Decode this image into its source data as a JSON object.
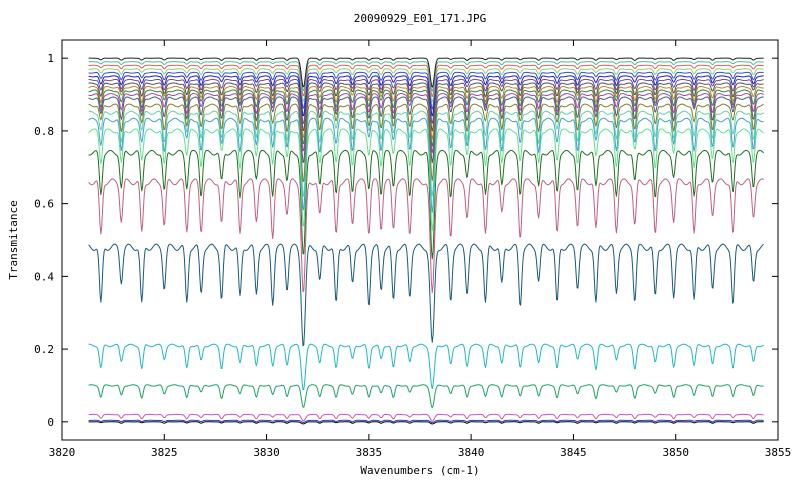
{
  "chart_data": {
    "type": "line",
    "title": "20090929_E01_171.JPG",
    "xlabel": "Wavenumbers (cm-1)",
    "ylabel": "Transmitance",
    "xlim": [
      3820,
      3855
    ],
    "ylim": [
      -0.05,
      1.05
    ],
    "x_range": [
      3821.3,
      3854.3
    ],
    "x_ticks": [
      3820,
      3825,
      3830,
      3835,
      3840,
      3845,
      3850,
      3855
    ],
    "x_tick_labels": [
      "3820",
      "3825",
      "3830",
      "3835",
      "3840",
      "3845",
      "3850",
      "3855"
    ],
    "y_ticks": [
      0,
      0.2,
      0.4,
      0.6,
      0.8,
      1
    ],
    "y_tick_labels": [
      "0",
      "0.2",
      "0.4",
      "0.6",
      "0.8",
      "1"
    ],
    "grid": false,
    "legend": "none",
    "absorption_lines_cm1": [
      3821.9,
      3822.9,
      3823.9,
      3825.0,
      3826.1,
      3826.8,
      3827.8,
      3828.7,
      3829.5,
      3830.3,
      3831.0,
      3831.8,
      3832.6,
      3833.4,
      3834.2,
      3835.0,
      3835.6,
      3836.2,
      3837.0,
      3838.1,
      3839.0,
      3839.8,
      3840.7,
      3841.5,
      3842.4,
      3843.3,
      3844.2,
      3845.2,
      3846.1,
      3847.1,
      3848.0,
      3849.0,
      3849.9,
      3850.9,
      3851.8,
      3852.8,
      3853.8
    ],
    "series": [
      {
        "baseline": 0.0,
        "depth_mid": 0.004,
        "depth_max": 0.006,
        "color": "#000000"
      },
      {
        "baseline": 0.004,
        "depth_mid": 0.004,
        "depth_max": 0.006,
        "color": "#2040c0"
      },
      {
        "baseline": 0.02,
        "depth_mid": 0.012,
        "depth_max": 0.018,
        "color": "#d050d0"
      },
      {
        "baseline": 0.1,
        "depth_mid": 0.035,
        "depth_max": 0.06,
        "color": "#20a060"
      },
      {
        "baseline": 0.21,
        "depth_mid": 0.065,
        "depth_max": 0.12,
        "color": "#20b8c0"
      },
      {
        "baseline": 0.48,
        "depth_mid": 0.16,
        "depth_max": 0.27,
        "color": "#1a5a78"
      },
      {
        "baseline": 0.66,
        "depth_mid": 0.15,
        "depth_max": 0.31,
        "color": "#c06080"
      },
      {
        "baseline": 0.74,
        "depth_mid": 0.12,
        "depth_max": 0.29,
        "color": "#207020"
      },
      {
        "baseline": 0.8,
        "depth_mid": 0.1,
        "depth_max": 0.27,
        "color": "#60e090"
      },
      {
        "baseline": 0.83,
        "depth_mid": 0.09,
        "depth_max": 0.25,
        "color": "#40a0d0"
      },
      {
        "baseline": 0.85,
        "depth_mid": 0.08,
        "depth_max": 0.23,
        "color": "#60d0b0"
      },
      {
        "baseline": 0.87,
        "depth_mid": 0.07,
        "depth_max": 0.21,
        "color": "#808020"
      },
      {
        "baseline": 0.89,
        "depth_mid": 0.06,
        "depth_max": 0.18,
        "color": "#406080"
      },
      {
        "baseline": 0.9,
        "depth_mid": 0.05,
        "depth_max": 0.16,
        "color": "#b040b0"
      },
      {
        "baseline": 0.91,
        "depth_mid": 0.045,
        "depth_max": 0.15,
        "color": "#2a8a40"
      },
      {
        "baseline": 0.92,
        "depth_mid": 0.04,
        "depth_max": 0.14,
        "color": "#c08030"
      },
      {
        "baseline": 0.93,
        "depth_mid": 0.035,
        "depth_max": 0.13,
        "color": "#505050"
      },
      {
        "baseline": 0.94,
        "depth_mid": 0.03,
        "depth_max": 0.12,
        "color": "#6a4aa0"
      },
      {
        "baseline": 0.95,
        "depth_mid": 0.025,
        "depth_max": 0.11,
        "color": "#1b1bcc"
      },
      {
        "baseline": 0.96,
        "depth_mid": 0.02,
        "depth_max": 0.1,
        "color": "#3050d0"
      },
      {
        "baseline": 0.97,
        "depth_mid": 0.015,
        "depth_max": 0.09,
        "color": "#90d070"
      },
      {
        "baseline": 0.98,
        "depth_mid": 0.01,
        "depth_max": 0.085,
        "color": "#e06060"
      },
      {
        "baseline": 0.99,
        "depth_mid": 0.008,
        "depth_max": 0.08,
        "color": "#40c0a0"
      },
      {
        "baseline": 1.0,
        "depth_mid": 0.006,
        "depth_max": 0.08,
        "color": "#202020"
      }
    ]
  }
}
